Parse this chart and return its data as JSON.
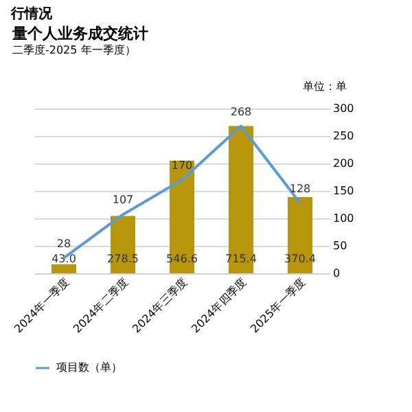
{
  "chart_data": {
    "type": "bar",
    "title": "量个人业务成交统计",
    "subtitle": "二季度-2025 年一季度）",
    "annotations": [
      "行情况"
    ],
    "categories": [
      "2024年一季度",
      "2024年二季度",
      "2024年三季度",
      "2024年四季度",
      "2025年一季度"
    ],
    "series": [
      {
        "color": "#b8960c",
        "axis": "y2",
        "values": [
          43.0,
          278.5,
          546.6,
          715.4,
          370.4
        ],
        "value_labels": [
          "43.0",
          "278.5",
          "546.6",
          "715.4",
          "370.4"
        ]
      },
      {
        "type": "line",
        "name": "项目数（单）",
        "color": "#5b9bd5",
        "values": [
          28,
          107,
          170,
          268,
          128
        ]
      }
    ],
    "ylim": [
      0,
      300
    ],
    "yticks": [
      0,
      50,
      100,
      150,
      200,
      250,
      300
    ],
    "ylabel": "单位：单",
    "y2lim": [
      0,
      800
    ],
    "data_labels": true,
    "grid": "y",
    "legend": "bottom",
    "marker": "none",
    "line_style": "solid"
  }
}
